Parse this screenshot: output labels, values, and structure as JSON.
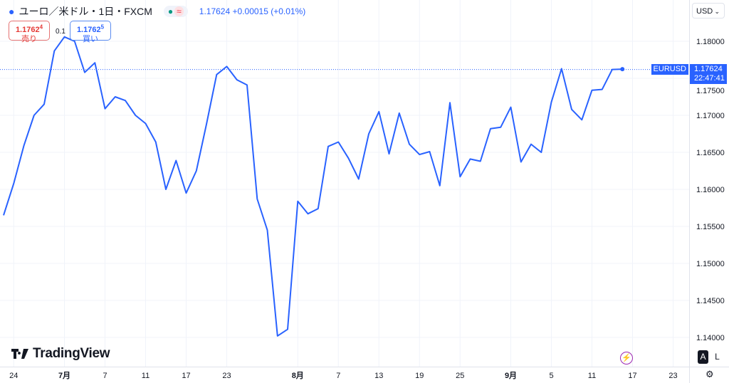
{
  "header": {
    "symbol_title": "ユーロ／米ドル・1日・FXCM",
    "status_dot": "●",
    "status_approx": "≈",
    "last": "1.17624",
    "change": "+0.00015",
    "change_pct": "(+0.01%)"
  },
  "trade": {
    "sell_price": "1.1762",
    "sell_price_sup": "4",
    "sell_label": "売り",
    "spread": "0.1",
    "buy_price": "1.1762",
    "buy_price_sup": "5",
    "buy_label": "買い"
  },
  "currency_select": "USD",
  "price_tag": {
    "symbol": "EURUSD",
    "price": "1.17624",
    "countdown": "22:47:41"
  },
  "logo": "TradingView",
  "scale_buttons": {
    "auto": "A",
    "log": "L"
  },
  "colors": {
    "line": "#2962ff",
    "grid": "#f0f3fa",
    "axis_text": "#131722",
    "tag": "#2962ff"
  },
  "icons": {
    "logo": "tradingview-logo",
    "alert": "lightning-icon",
    "settings": "gear-icon",
    "currency_chevron": "chevron-down-icon"
  },
  "chart_data": {
    "type": "line",
    "ylim": [
      1.13606,
      1.18558
    ],
    "grid": true,
    "yticks": [
      "1.18000",
      "1.17500",
      "1.17000",
      "1.16500",
      "1.16000",
      "1.15500",
      "1.15000",
      "1.14500",
      "1.14000"
    ],
    "xticks": [
      {
        "label": "24",
        "date": "2025-06-24"
      },
      {
        "label": "7月",
        "date": "2025-07-01",
        "bold": true
      },
      {
        "label": "7",
        "date": "2025-07-07"
      },
      {
        "label": "11",
        "date": "2025-07-11"
      },
      {
        "label": "17",
        "date": "2025-07-17"
      },
      {
        "label": "23",
        "date": "2025-07-23"
      },
      {
        "label": "8月",
        "date": "2025-08-01",
        "bold": true
      },
      {
        "label": "7",
        "date": "2025-08-07"
      },
      {
        "label": "13",
        "date": "2025-08-13"
      },
      {
        "label": "19",
        "date": "2025-08-19"
      },
      {
        "label": "25",
        "date": "2025-08-25"
      },
      {
        "label": "9月",
        "date": "2025-09-01",
        "bold": true
      },
      {
        "label": "5",
        "date": "2025-09-05"
      },
      {
        "label": "11",
        "date": "2025-09-11"
      },
      {
        "label": "17",
        "date": "2025-09-17"
      },
      {
        "label": "23",
        "date": "2025-09-23"
      }
    ],
    "series": [
      {
        "dates": [
          "2025-06-23",
          "2025-06-24",
          "2025-06-25",
          "2025-06-26",
          "2025-06-27",
          "2025-06-30",
          "2025-07-01",
          "2025-07-02",
          "2025-07-03",
          "2025-07-04",
          "2025-07-07",
          "2025-07-08",
          "2025-07-09",
          "2025-07-10",
          "2025-07-11",
          "2025-07-14",
          "2025-07-15",
          "2025-07-16",
          "2025-07-17",
          "2025-07-18",
          "2025-07-21",
          "2025-07-22",
          "2025-07-23",
          "2025-07-24",
          "2025-07-25",
          "2025-07-28",
          "2025-07-29",
          "2025-07-30",
          "2025-07-31",
          "2025-08-01",
          "2025-08-04",
          "2025-08-05",
          "2025-08-06",
          "2025-08-07",
          "2025-08-08",
          "2025-08-11",
          "2025-08-12",
          "2025-08-13",
          "2025-08-14",
          "2025-08-15",
          "2025-08-18",
          "2025-08-19",
          "2025-08-20",
          "2025-08-21",
          "2025-08-22",
          "2025-08-25",
          "2025-08-26",
          "2025-08-27",
          "2025-08-28",
          "2025-08-29",
          "2025-09-01",
          "2025-09-02",
          "2025-09-03",
          "2025-09-04",
          "2025-09-05",
          "2025-09-08",
          "2025-09-09",
          "2025-09-10",
          "2025-09-11",
          "2025-09-12",
          "2025-09-15",
          "2025-09-16"
        ],
        "values": [
          1.1565,
          1.1608,
          1.1659,
          1.17,
          1.1715,
          1.1787,
          1.1806,
          1.18,
          1.1758,
          1.1771,
          1.1709,
          1.1725,
          1.172,
          1.17,
          1.1689,
          1.1664,
          1.16,
          1.1639,
          1.1595,
          1.1625,
          1.1688,
          1.1755,
          1.1766,
          1.1748,
          1.1741,
          1.1587,
          1.1545,
          1.1402,
          1.1411,
          1.1584,
          1.1567,
          1.1574,
          1.1658,
          1.1664,
          1.1642,
          1.1614,
          1.1675,
          1.1705,
          1.1648,
          1.1703,
          1.1661,
          1.1647,
          1.1651,
          1.1605,
          1.1717,
          1.1617,
          1.1641,
          1.1638,
          1.1682,
          1.1684,
          1.1711,
          1.1637,
          1.1661,
          1.165,
          1.1718,
          1.1763,
          1.1708,
          1.1694,
          1.1734,
          1.1735,
          1.1762,
          1.17624
        ]
      }
    ]
  }
}
